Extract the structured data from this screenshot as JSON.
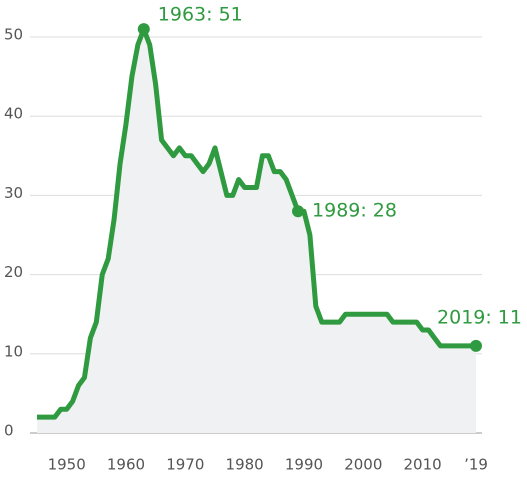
{
  "chart_data": {
    "type": "line",
    "x": [
      1945,
      1946,
      1947,
      1948,
      1949,
      1950,
      1951,
      1952,
      1953,
      1954,
      1955,
      1956,
      1957,
      1958,
      1959,
      1960,
      1961,
      1962,
      1963,
      1964,
      1965,
      1966,
      1967,
      1968,
      1969,
      1970,
      1971,
      1972,
      1973,
      1974,
      1975,
      1976,
      1977,
      1978,
      1979,
      1980,
      1981,
      1982,
      1983,
      1984,
      1985,
      1986,
      1987,
      1988,
      1989,
      1990,
      1991,
      1992,
      1993,
      1994,
      1995,
      1996,
      1997,
      1998,
      1999,
      2000,
      2001,
      2002,
      2003,
      2004,
      2005,
      2006,
      2007,
      2008,
      2009,
      2010,
      2011,
      2012,
      2013,
      2014,
      2015,
      2016,
      2017,
      2018,
      2019
    ],
    "series": [
      {
        "color": "#2f9a3f",
        "area_color": "#eff1f3",
        "values": [
          2,
          2,
          2,
          2,
          3,
          3,
          4,
          6,
          7,
          12,
          14,
          20,
          22,
          27,
          34,
          39,
          45,
          49,
          51,
          49,
          44,
          37,
          36,
          35,
          36,
          35,
          35,
          34,
          33,
          34,
          36,
          33,
          30,
          30,
          32,
          31,
          31,
          31,
          35,
          35,
          33,
          33,
          32,
          30,
          28,
          28,
          25,
          16,
          14,
          14,
          14,
          14,
          15,
          15,
          15,
          15,
          15,
          15,
          15,
          15,
          14,
          14,
          14,
          14,
          14,
          13,
          13,
          12,
          11,
          11,
          11,
          11,
          11,
          11,
          11
        ]
      }
    ],
    "xlim": [
      1945,
      2019
    ],
    "ylim": [
      0,
      50
    ],
    "xticks": [
      1950,
      1960,
      1970,
      1980,
      1990,
      2000,
      2010,
      {
        "value": 2019,
        "label": "’19"
      }
    ],
    "yticks": [
      0,
      10,
      20,
      30,
      40,
      50
    ],
    "grid": true,
    "annotations": [
      {
        "x": 1963,
        "y": 51,
        "label": "1963: 51"
      },
      {
        "x": 1989,
        "y": 28,
        "label": "1989: 28"
      },
      {
        "x": 2019,
        "y": 11,
        "label": "2019: 11"
      }
    ]
  }
}
